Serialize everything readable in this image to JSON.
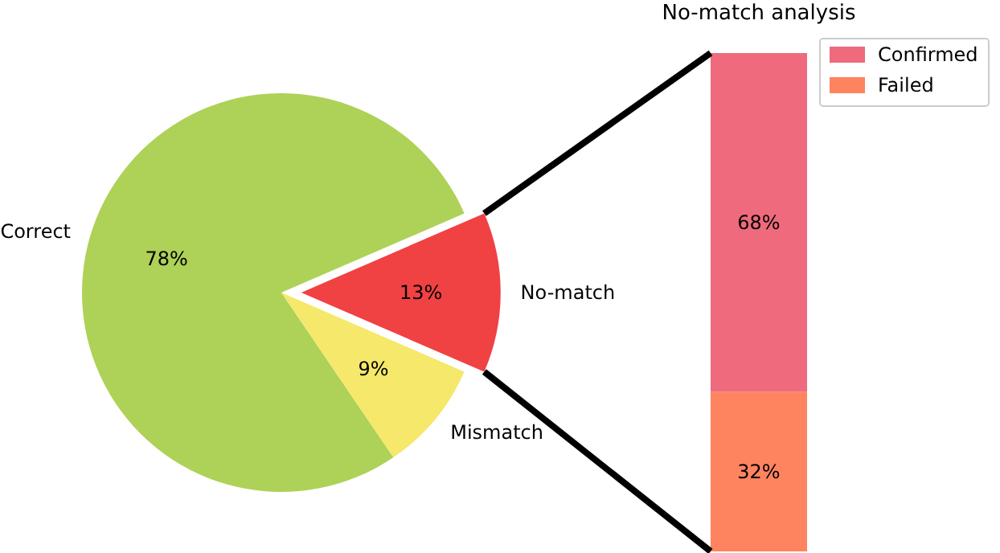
{
  "chart_data": [
    {
      "type": "pie",
      "categories": [
        "No-match",
        "Correct",
        "Mismatch"
      ],
      "values": [
        13,
        78,
        9
      ],
      "colors": [
        "#f04143",
        "#aed157",
        "#f5e86a"
      ],
      "value_labels": [
        "13%",
        "78%",
        "9%"
      ]
    },
    {
      "type": "bar",
      "title": "No-match analysis",
      "stacked": true,
      "categories": [
        null
      ],
      "legend": "top right",
      "series": [
        {
          "name": "Failed",
          "color": "#fe845f",
          "values": [
            32
          ],
          "value_labels": [
            "32%"
          ]
        },
        {
          "name": "Confirmed",
          "color": "#ee6a7c",
          "values": [
            68
          ],
          "value_labels": [
            "68%"
          ]
        }
      ]
    }
  ]
}
